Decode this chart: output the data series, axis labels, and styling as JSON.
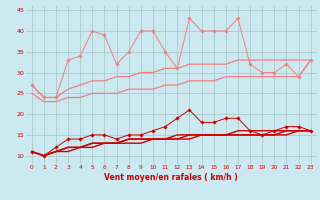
{
  "x": [
    0,
    1,
    2,
    3,
    4,
    5,
    6,
    7,
    8,
    9,
    10,
    11,
    12,
    13,
    14,
    15,
    16,
    17,
    18,
    19,
    20,
    21,
    22,
    23
  ],
  "series": [
    {
      "name": "rafales_spiky",
      "color": "#f08080",
      "linewidth": 0.7,
      "marker": "D",
      "markersize": 1.8,
      "values": [
        27,
        24,
        24,
        33,
        34,
        40,
        39,
        32,
        35,
        40,
        40,
        35,
        31,
        43,
        40,
        40,
        40,
        43,
        32,
        30,
        30,
        32,
        29,
        33
      ]
    },
    {
      "name": "rafales_smooth1",
      "color": "#f08080",
      "linewidth": 0.9,
      "marker": null,
      "markersize": 0,
      "values": [
        27,
        24,
        24,
        26,
        27,
        28,
        28,
        29,
        29,
        30,
        30,
        31,
        31,
        32,
        32,
        32,
        32,
        33,
        33,
        33,
        33,
        33,
        33,
        33
      ]
    },
    {
      "name": "rafales_smooth2",
      "color": "#f08080",
      "linewidth": 0.9,
      "marker": null,
      "markersize": 0,
      "values": [
        25,
        23,
        23,
        24,
        24,
        25,
        25,
        25,
        26,
        26,
        26,
        27,
        27,
        28,
        28,
        28,
        29,
        29,
        29,
        29,
        29,
        29,
        29,
        33
      ]
    },
    {
      "name": "vent_spiky",
      "color": "#cc0000",
      "linewidth": 0.7,
      "marker": "D",
      "markersize": 1.8,
      "values": [
        11,
        10,
        12,
        14,
        14,
        15,
        15,
        14,
        15,
        15,
        16,
        17,
        19,
        21,
        18,
        18,
        19,
        19,
        16,
        15,
        16,
        17,
        17,
        16
      ]
    },
    {
      "name": "vent_smooth1",
      "color": "#cc0000",
      "linewidth": 1.0,
      "marker": null,
      "markersize": 0,
      "values": [
        11,
        10,
        11,
        12,
        12,
        13,
        13,
        13,
        14,
        14,
        14,
        14,
        15,
        15,
        15,
        15,
        15,
        16,
        16,
        16,
        16,
        16,
        16,
        16
      ]
    },
    {
      "name": "vent_smooth2",
      "color": "#cc0000",
      "linewidth": 1.0,
      "marker": null,
      "markersize": 0,
      "values": [
        11,
        10,
        11,
        12,
        12,
        13,
        13,
        13,
        14,
        14,
        14,
        14,
        14,
        15,
        15,
        15,
        15,
        15,
        15,
        15,
        15,
        16,
        16,
        16
      ]
    },
    {
      "name": "vent_smooth3",
      "color": "#cc0000",
      "linewidth": 1.0,
      "marker": null,
      "markersize": 0,
      "values": [
        11,
        10,
        11,
        11,
        12,
        12,
        13,
        13,
        13,
        13,
        14,
        14,
        14,
        14,
        15,
        15,
        15,
        15,
        15,
        15,
        15,
        15,
        16,
        16
      ]
    }
  ],
  "xlabel": "Vent moyen/en rafales ( km/h )",
  "xlim": [
    -0.5,
    23.5
  ],
  "ylim": [
    8,
    46
  ],
  "yticks": [
    10,
    15,
    20,
    25,
    30,
    35,
    40,
    45
  ],
  "xticks": [
    0,
    1,
    2,
    3,
    4,
    5,
    6,
    7,
    8,
    9,
    10,
    11,
    12,
    13,
    14,
    15,
    16,
    17,
    18,
    19,
    20,
    21,
    22,
    23
  ],
  "bg_color": "#cce8f0",
  "grid_color": "#aacccc",
  "tick_color": "#cc0000",
  "xlabel_color": "#cc0000"
}
